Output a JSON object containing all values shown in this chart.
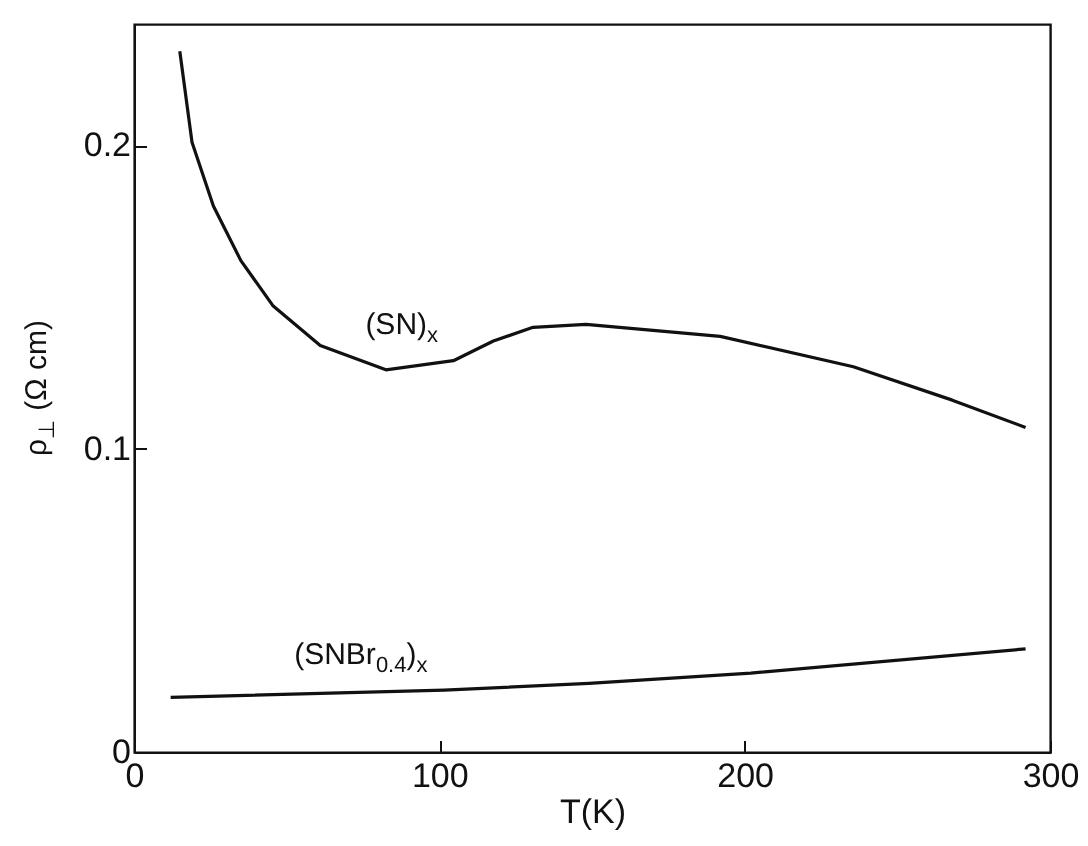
{
  "chart_data": {
    "type": "line",
    "xlabel": "T(K)",
    "ylabel": "ρ$_{⊥}$ (Ω cm)",
    "xlim": [
      0,
      300
    ],
    "ylim": [
      0,
      0.24
    ],
    "xticks": [
      0,
      100,
      200,
      300
    ],
    "yticks": [
      0,
      0.1,
      0.2
    ],
    "grid": false,
    "line_style": "solid",
    "marker": "none",
    "series": [
      {
        "name": "(SN)$_{x}$",
        "color": "#111111",
        "x": [
          15,
          19,
          26,
          35,
          45.6,
          61,
          82.5,
          104.6,
          117.7,
          130.7,
          148,
          192,
          235.6,
          268,
          292
        ],
        "values": [
          0.231,
          0.201,
          0.18,
          0.162,
          0.147,
          0.134,
          0.126,
          0.129,
          0.1355,
          0.14,
          0.141,
          0.137,
          0.127,
          0.116,
          0.107
        ]
      },
      {
        "name": "(SNBr$_{0.4}$)$_{x}$",
        "color": "#111111",
        "x": [
          12,
          101.6,
          149,
          202,
          292
        ],
        "values": [
          0.018,
          0.0204,
          0.0226,
          0.026,
          0.034
        ]
      }
    ]
  }
}
